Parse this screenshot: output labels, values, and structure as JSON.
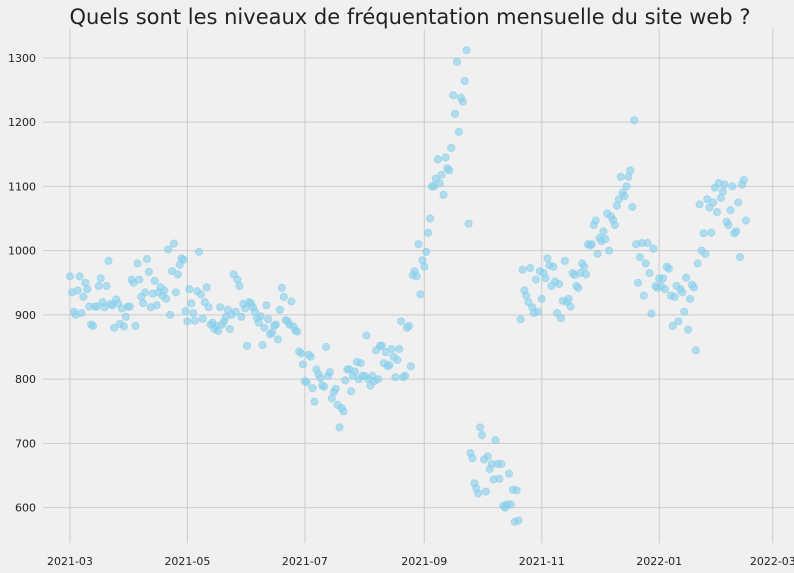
{
  "chart_data": {
    "type": "scatter",
    "title": "Quels sont les niveaux de fréquentation mensuelle du site web ?",
    "xlabel": "",
    "ylabel": "",
    "x_range": [
      "2021-02-15",
      "2022-03-12"
    ],
    "ylim": [
      545,
      1345
    ],
    "grid": true,
    "colors": {
      "points": "#87ceeb",
      "background": "#f0f0f0",
      "grid": "#cbcbcb"
    },
    "x_ticks": [
      {
        "date": "2021-03-01",
        "label": "2021-03"
      },
      {
        "date": "2021-05-01",
        "label": "2021-05"
      },
      {
        "date": "2021-07-01",
        "label": "2021-07"
      },
      {
        "date": "2021-09-01",
        "label": "2021-09"
      },
      {
        "date": "2021-11-01",
        "label": "2021-11"
      },
      {
        "date": "2022-01-01",
        "label": "2022-01"
      },
      {
        "date": "2022-03-01",
        "label": "2022-03"
      }
    ],
    "y_ticks": [
      600,
      700,
      800,
      900,
      1000,
      1100,
      1200,
      1300
    ],
    "points": [
      [
        "2021-03-01",
        960
      ],
      [
        "2021-03-02",
        935
      ],
      [
        "2021-03-03",
        905
      ],
      [
        "2021-03-04",
        900
      ],
      [
        "2021-03-05",
        938
      ],
      [
        "2021-03-06",
        960
      ],
      [
        "2021-03-07",
        903
      ],
      [
        "2021-03-08",
        928
      ],
      [
        "2021-03-09",
        950
      ],
      [
        "2021-03-10",
        940
      ],
      [
        "2021-03-11",
        913
      ],
      [
        "2021-03-12",
        885
      ],
      [
        "2021-03-13",
        883
      ],
      [
        "2021-03-14",
        913
      ],
      [
        "2021-03-15",
        913
      ],
      [
        "2021-03-16",
        945
      ],
      [
        "2021-03-17",
        957
      ],
      [
        "2021-03-18",
        920
      ],
      [
        "2021-03-19",
        912
      ],
      [
        "2021-03-20",
        945
      ],
      [
        "2021-03-21",
        984
      ],
      [
        "2021-03-22",
        917
      ],
      [
        "2021-03-23",
        915
      ],
      [
        "2021-03-24",
        880
      ],
      [
        "2021-03-25",
        924
      ],
      [
        "2021-03-26",
        918
      ],
      [
        "2021-03-27",
        886
      ],
      [
        "2021-03-28",
        910
      ],
      [
        "2021-03-29",
        882
      ],
      [
        "2021-03-30",
        897
      ],
      [
        "2021-03-31",
        913
      ],
      [
        "2021-04-01",
        913
      ],
      [
        "2021-04-02",
        955
      ],
      [
        "2021-04-03",
        950
      ],
      [
        "2021-04-04",
        883
      ],
      [
        "2021-04-05",
        980
      ],
      [
        "2021-04-06",
        955
      ],
      [
        "2021-04-07",
        928
      ],
      [
        "2021-04-08",
        918
      ],
      [
        "2021-04-09",
        935
      ],
      [
        "2021-04-10",
        987
      ],
      [
        "2021-04-11",
        967
      ],
      [
        "2021-04-12",
        912
      ],
      [
        "2021-04-13",
        933
      ],
      [
        "2021-04-14",
        953
      ],
      [
        "2021-04-15",
        915
      ],
      [
        "2021-04-16",
        935
      ],
      [
        "2021-04-17",
        943
      ],
      [
        "2021-04-18",
        930
      ],
      [
        "2021-04-19",
        938
      ],
      [
        "2021-04-20",
        925
      ],
      [
        "2021-04-21",
        1002
      ],
      [
        "2021-04-22",
        900
      ],
      [
        "2021-04-23",
        968
      ],
      [
        "2021-04-24",
        1011
      ],
      [
        "2021-04-25",
        935
      ],
      [
        "2021-04-26",
        963
      ],
      [
        "2021-04-27",
        978
      ],
      [
        "2021-04-28",
        988
      ],
      [
        "2021-04-29",
        986
      ],
      [
        "2021-04-30",
        906
      ],
      [
        "2021-05-01",
        890
      ],
      [
        "2021-05-02",
        940
      ],
      [
        "2021-05-03",
        918
      ],
      [
        "2021-05-04",
        903
      ],
      [
        "2021-05-05",
        891
      ],
      [
        "2021-05-06",
        937
      ],
      [
        "2021-05-07",
        998
      ],
      [
        "2021-05-08",
        932
      ],
      [
        "2021-05-09",
        894
      ],
      [
        "2021-05-10",
        920
      ],
      [
        "2021-05-11",
        943
      ],
      [
        "2021-05-12",
        912
      ],
      [
        "2021-05-13",
        885
      ],
      [
        "2021-05-14",
        888
      ],
      [
        "2021-05-15",
        878
      ],
      [
        "2021-05-16",
        883
      ],
      [
        "2021-05-17",
        875
      ],
      [
        "2021-05-18",
        912
      ],
      [
        "2021-05-19",
        885
      ],
      [
        "2021-05-20",
        890
      ],
      [
        "2021-05-21",
        897
      ],
      [
        "2021-05-22",
        908
      ],
      [
        "2021-05-23",
        878
      ],
      [
        "2021-05-24",
        900
      ],
      [
        "2021-05-25",
        963
      ],
      [
        "2021-05-26",
        905
      ],
      [
        "2021-05-27",
        955
      ],
      [
        "2021-05-28",
        945
      ],
      [
        "2021-05-29",
        897
      ],
      [
        "2021-05-30",
        917
      ],
      [
        "2021-05-31",
        910
      ],
      [
        "2021-06-01",
        852
      ],
      [
        "2021-06-02",
        920
      ],
      [
        "2021-06-03",
        918
      ],
      [
        "2021-06-04",
        912
      ],
      [
        "2021-06-05",
        905
      ],
      [
        "2021-06-06",
        895
      ],
      [
        "2021-06-07",
        888
      ],
      [
        "2021-06-08",
        898
      ],
      [
        "2021-06-09",
        853
      ],
      [
        "2021-06-10",
        880
      ],
      [
        "2021-06-11",
        915
      ],
      [
        "2021-06-12",
        893
      ],
      [
        "2021-06-13",
        870
      ],
      [
        "2021-06-14",
        873
      ],
      [
        "2021-06-15",
        883
      ],
      [
        "2021-06-16",
        885
      ],
      [
        "2021-06-17",
        862
      ],
      [
        "2021-06-18",
        908
      ],
      [
        "2021-06-19",
        942
      ],
      [
        "2021-06-20",
        928
      ],
      [
        "2021-06-21",
        892
      ],
      [
        "2021-06-22",
        890
      ],
      [
        "2021-06-23",
        885
      ],
      [
        "2021-06-24",
        921
      ],
      [
        "2021-06-25",
        882
      ],
      [
        "2021-06-26",
        876
      ],
      [
        "2021-06-27",
        874
      ],
      [
        "2021-06-28",
        843
      ],
      [
        "2021-06-29",
        840
      ],
      [
        "2021-06-30",
        823
      ],
      [
        "2021-07-01",
        797
      ],
      [
        "2021-07-02",
        795
      ],
      [
        "2021-07-03",
        838
      ],
      [
        "2021-07-04",
        835
      ],
      [
        "2021-07-05",
        786
      ],
      [
        "2021-07-06",
        765
      ],
      [
        "2021-07-07",
        815
      ],
      [
        "2021-07-08",
        808
      ],
      [
        "2021-07-09",
        802
      ],
      [
        "2021-07-10",
        790
      ],
      [
        "2021-07-11",
        788
      ],
      [
        "2021-07-12",
        850
      ],
      [
        "2021-07-13",
        805
      ],
      [
        "2021-07-14",
        811
      ],
      [
        "2021-07-15",
        770
      ],
      [
        "2021-07-16",
        780
      ],
      [
        "2021-07-17",
        785
      ],
      [
        "2021-07-18",
        760
      ],
      [
        "2021-07-19",
        725
      ],
      [
        "2021-07-20",
        755
      ],
      [
        "2021-07-21",
        750
      ],
      [
        "2021-07-22",
        798
      ],
      [
        "2021-07-23",
        815
      ],
      [
        "2021-07-24",
        815
      ],
      [
        "2021-07-25",
        781
      ],
      [
        "2021-07-26",
        805
      ],
      [
        "2021-07-27",
        812
      ],
      [
        "2021-07-28",
        827
      ],
      [
        "2021-07-29",
        800
      ],
      [
        "2021-07-30",
        825
      ],
      [
        "2021-07-31",
        805
      ],
      [
        "2021-08-01",
        805
      ],
      [
        "2021-08-02",
        868
      ],
      [
        "2021-08-03",
        800
      ],
      [
        "2021-08-04",
        790
      ],
      [
        "2021-08-05",
        805
      ],
      [
        "2021-08-06",
        797
      ],
      [
        "2021-08-07",
        845
      ],
      [
        "2021-08-08",
        800
      ],
      [
        "2021-08-09",
        852
      ],
      [
        "2021-08-10",
        852
      ],
      [
        "2021-08-11",
        825
      ],
      [
        "2021-08-12",
        842
      ],
      [
        "2021-08-13",
        820
      ],
      [
        "2021-08-14",
        822
      ],
      [
        "2021-08-15",
        847
      ],
      [
        "2021-08-16",
        835
      ],
      [
        "2021-08-17",
        803
      ],
      [
        "2021-08-18",
        830
      ],
      [
        "2021-08-19",
        847
      ],
      [
        "2021-08-20",
        890
      ],
      [
        "2021-08-21",
        803
      ],
      [
        "2021-08-22",
        805
      ],
      [
        "2021-08-23",
        880
      ],
      [
        "2021-08-24",
        883
      ],
      [
        "2021-08-25",
        820
      ],
      [
        "2021-08-26",
        962
      ],
      [
        "2021-08-27",
        968
      ],
      [
        "2021-08-28",
        960
      ],
      [
        "2021-08-29",
        1010
      ],
      [
        "2021-08-30",
        932
      ],
      [
        "2021-08-31",
        985
      ],
      [
        "2021-09-01",
        975
      ],
      [
        "2021-09-02",
        998
      ],
      [
        "2021-09-03",
        1028
      ],
      [
        "2021-09-04",
        1050
      ],
      [
        "2021-09-05",
        1100
      ],
      [
        "2021-09-06",
        1100
      ],
      [
        "2021-09-07",
        1112
      ],
      [
        "2021-09-08",
        1142
      ],
      [
        "2021-09-09",
        1105
      ],
      [
        "2021-09-10",
        1118
      ],
      [
        "2021-09-11",
        1087
      ],
      [
        "2021-09-12",
        1145
      ],
      [
        "2021-09-13",
        1128
      ],
      [
        "2021-09-14",
        1125
      ],
      [
        "2021-09-15",
        1160
      ],
      [
        "2021-09-16",
        1242
      ],
      [
        "2021-09-17",
        1213
      ],
      [
        "2021-09-18",
        1294
      ],
      [
        "2021-09-19",
        1185
      ],
      [
        "2021-09-20",
        1238
      ],
      [
        "2021-09-21",
        1232
      ],
      [
        "2021-09-22",
        1264
      ],
      [
        "2021-09-23",
        1312
      ],
      [
        "2021-09-24",
        1042
      ],
      [
        "2021-09-25",
        685
      ],
      [
        "2021-09-26",
        677
      ],
      [
        "2021-09-27",
        638
      ],
      [
        "2021-09-28",
        630
      ],
      [
        "2021-09-29",
        622
      ],
      [
        "2021-09-30",
        725
      ],
      [
        "2021-10-01",
        713
      ],
      [
        "2021-10-02",
        675
      ],
      [
        "2021-10-03",
        625
      ],
      [
        "2021-10-04",
        680
      ],
      [
        "2021-10-05",
        660
      ],
      [
        "2021-10-06",
        668
      ],
      [
        "2021-10-07",
        644
      ],
      [
        "2021-10-08",
        705
      ],
      [
        "2021-10-09",
        668
      ],
      [
        "2021-10-10",
        645
      ],
      [
        "2021-10-11",
        668
      ],
      [
        "2021-10-12",
        603
      ],
      [
        "2021-10-13",
        600
      ],
      [
        "2021-10-14",
        605
      ],
      [
        "2021-10-15",
        653
      ],
      [
        "2021-10-16",
        605
      ],
      [
        "2021-10-17",
        628
      ],
      [
        "2021-10-18",
        578
      ],
      [
        "2021-10-19",
        627
      ],
      [
        "2021-10-20",
        580
      ],
      [
        "2021-10-21",
        893
      ],
      [
        "2021-10-22",
        970
      ],
      [
        "2021-10-23",
        938
      ],
      [
        "2021-10-24",
        930
      ],
      [
        "2021-10-25",
        920
      ],
      [
        "2021-10-26",
        973
      ],
      [
        "2021-10-27",
        912
      ],
      [
        "2021-10-28",
        903
      ],
      [
        "2021-10-29",
        955
      ],
      [
        "2021-10-30",
        905
      ],
      [
        "2021-10-31",
        968
      ],
      [
        "2021-11-01",
        925
      ],
      [
        "2021-11-02",
        965
      ],
      [
        "2021-11-03",
        957
      ],
      [
        "2021-11-04",
        988
      ],
      [
        "2021-11-05",
        977
      ],
      [
        "2021-11-06",
        945
      ],
      [
        "2021-11-07",
        975
      ],
      [
        "2021-11-08",
        952
      ],
      [
        "2021-11-09",
        903
      ],
      [
        "2021-11-10",
        948
      ],
      [
        "2021-11-11",
        895
      ],
      [
        "2021-11-12",
        922
      ],
      [
        "2021-11-13",
        984
      ],
      [
        "2021-11-14",
        920
      ],
      [
        "2021-11-15",
        925
      ],
      [
        "2021-11-16",
        913
      ],
      [
        "2021-11-17",
        965
      ],
      [
        "2021-11-18",
        962
      ],
      [
        "2021-11-19",
        945
      ],
      [
        "2021-11-20",
        942
      ],
      [
        "2021-11-21",
        965
      ],
      [
        "2021-11-22",
        980
      ],
      [
        "2021-11-23",
        975
      ],
      [
        "2021-11-24",
        963
      ],
      [
        "2021-11-25",
        1010
      ],
      [
        "2021-11-26",
        1008
      ],
      [
        "2021-11-27",
        1010
      ],
      [
        "2021-11-28",
        1040
      ],
      [
        "2021-11-29",
        1047
      ],
      [
        "2021-11-30",
        995
      ],
      [
        "2021-12-01",
        1020
      ],
      [
        "2021-12-02",
        1015
      ],
      [
        "2021-12-03",
        1030
      ],
      [
        "2021-12-04",
        1018
      ],
      [
        "2021-12-05",
        1058
      ],
      [
        "2021-12-06",
        1000
      ],
      [
        "2021-12-07",
        1053
      ],
      [
        "2021-12-08",
        1048
      ],
      [
        "2021-12-09",
        1040
      ],
      [
        "2021-12-10",
        1070
      ],
      [
        "2021-12-11",
        1080
      ],
      [
        "2021-12-12",
        1115
      ],
      [
        "2021-12-13",
        1090
      ],
      [
        "2021-12-14",
        1085
      ],
      [
        "2021-12-15",
        1100
      ],
      [
        "2021-12-16",
        1115
      ],
      [
        "2021-12-17",
        1125
      ],
      [
        "2021-12-18",
        1068
      ],
      [
        "2021-12-19",
        1203
      ],
      [
        "2021-12-20",
        1010
      ],
      [
        "2021-12-21",
        950
      ],
      [
        "2021-12-22",
        990
      ],
      [
        "2021-12-23",
        1012
      ],
      [
        "2021-12-24",
        930
      ],
      [
        "2021-12-25",
        980
      ],
      [
        "2021-12-26",
        1012
      ],
      [
        "2021-12-27",
        965
      ],
      [
        "2021-12-28",
        902
      ],
      [
        "2021-12-29",
        1003
      ],
      [
        "2021-12-30",
        945
      ],
      [
        "2021-12-31",
        942
      ],
      [
        "2022-01-01",
        957
      ],
      [
        "2022-01-02",
        945
      ],
      [
        "2022-01-03",
        957
      ],
      [
        "2022-01-04",
        940
      ],
      [
        "2022-01-05",
        975
      ],
      [
        "2022-01-06",
        972
      ],
      [
        "2022-01-07",
        930
      ],
      [
        "2022-01-08",
        883
      ],
      [
        "2022-01-09",
        928
      ],
      [
        "2022-01-10",
        945
      ],
      [
        "2022-01-11",
        890
      ],
      [
        "2022-01-12",
        940
      ],
      [
        "2022-01-13",
        935
      ],
      [
        "2022-01-14",
        905
      ],
      [
        "2022-01-15",
        958
      ],
      [
        "2022-01-16",
        877
      ],
      [
        "2022-01-17",
        925
      ],
      [
        "2022-01-18",
        947
      ],
      [
        "2022-01-19",
        943
      ],
      [
        "2022-01-20",
        845
      ],
      [
        "2022-01-21",
        980
      ],
      [
        "2022-01-22",
        1072
      ],
      [
        "2022-01-23",
        1000
      ],
      [
        "2022-01-24",
        1027
      ],
      [
        "2022-01-25",
        995
      ],
      [
        "2022-01-26",
        1080
      ],
      [
        "2022-01-27",
        1067
      ],
      [
        "2022-01-28",
        1028
      ],
      [
        "2022-01-29",
        1075
      ],
      [
        "2022-01-30",
        1098
      ],
      [
        "2022-01-31",
        1060
      ],
      [
        "2022-02-01",
        1105
      ],
      [
        "2022-02-02",
        1082
      ],
      [
        "2022-02-03",
        1092
      ],
      [
        "2022-02-04",
        1103
      ],
      [
        "2022-02-05",
        1045
      ],
      [
        "2022-02-06",
        1040
      ],
      [
        "2022-02-07",
        1063
      ],
      [
        "2022-02-08",
        1100
      ],
      [
        "2022-02-09",
        1027
      ],
      [
        "2022-02-10",
        1030
      ],
      [
        "2022-02-11",
        1075
      ],
      [
        "2022-02-12",
        990
      ],
      [
        "2022-02-13",
        1103
      ],
      [
        "2022-02-14",
        1110
      ],
      [
        "2022-02-15",
        1047
      ]
    ]
  }
}
